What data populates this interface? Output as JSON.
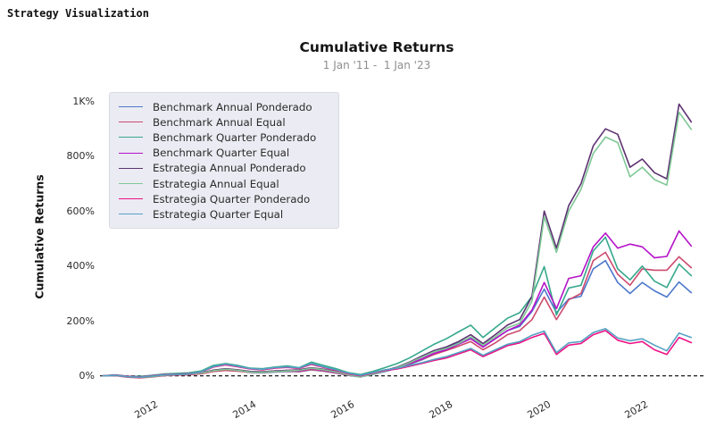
{
  "window": {
    "title": "Strategy Visualization"
  },
  "chart": {
    "title": "Cumulative Returns",
    "subtitle": "1 Jan '11 -  1 Jan '23",
    "y_axis_label": "Cumulative Returns"
  },
  "chart_data": {
    "type": "line",
    "title": "Cumulative Returns",
    "subtitle": "1 Jan '11 -  1 Jan '23",
    "xlabel": "",
    "ylabel": "Cumulative Returns",
    "grid": false,
    "legend_position": "upper-left",
    "zero_line": {
      "value": 0,
      "style": "dashed",
      "color": "#000000"
    },
    "x_ticks": [
      2012,
      2014,
      2016,
      2018,
      2020,
      2022
    ],
    "y_ticks": [
      "0%",
      "200%",
      "400%",
      "600%",
      "800%",
      "1K%"
    ],
    "y_tick_values": [
      0,
      200,
      400,
      600,
      800,
      1000
    ],
    "ylim": [
      -40,
      1060
    ],
    "xlim": [
      2011,
      2023
    ],
    "x": [
      2011.0,
      2011.25,
      2011.5,
      2011.75,
      2012.0,
      2012.25,
      2012.5,
      2012.75,
      2013.0,
      2013.25,
      2013.5,
      2013.75,
      2014.0,
      2014.25,
      2014.5,
      2014.75,
      2015.0,
      2015.25,
      2015.5,
      2015.75,
      2016.0,
      2016.25,
      2016.5,
      2016.75,
      2017.0,
      2017.25,
      2017.5,
      2017.75,
      2018.0,
      2018.25,
      2018.5,
      2018.75,
      2019.0,
      2019.25,
      2019.5,
      2019.75,
      2020.0,
      2020.25,
      2020.5,
      2020.75,
      2021.0,
      2021.25,
      2021.5,
      2021.75,
      2022.0,
      2022.25,
      2022.5,
      2022.75,
      2023.0
    ],
    "series": [
      {
        "name": "Benchmark Annual Ponderado",
        "color": "#4d79cc",
        "values": [
          0,
          2,
          -4,
          -6,
          -3,
          2,
          4,
          5,
          8,
          18,
          22,
          18,
          12,
          11,
          14,
          16,
          15,
          22,
          17,
          10,
          2,
          -4,
          5,
          16,
          28,
          42,
          58,
          78,
          100,
          120,
          140,
          105,
          135,
          165,
          180,
          235,
          316,
          230,
          280,
          290,
          390,
          420,
          340,
          300,
          340,
          310,
          287,
          342,
          303
        ]
      },
      {
        "name": "Benchmark Annual Equal",
        "color": "#cc4a6e",
        "values": [
          0,
          1,
          -5,
          -7,
          -4,
          1,
          3,
          4,
          8,
          16,
          20,
          17,
          13,
          12,
          15,
          17,
          16,
          23,
          18,
          11,
          3,
          -3,
          6,
          18,
          30,
          44,
          60,
          78,
          92,
          108,
          125,
          95,
          120,
          150,
          165,
          205,
          287,
          205,
          277,
          300,
          420,
          450,
          370,
          330,
          390,
          385,
          385,
          434,
          394
        ]
      },
      {
        "name": "Benchmark Quarter Ponderado",
        "color": "#35a88c",
        "values": [
          0,
          4,
          -1,
          -2,
          2,
          7,
          9,
          11,
          18,
          38,
          45,
          38,
          28,
          26,
          32,
          36,
          30,
          50,
          38,
          26,
          12,
          5,
          16,
          30,
          45,
          65,
          90,
          115,
          135,
          160,
          185,
          140,
          175,
          210,
          230,
          290,
          398,
          222,
          320,
          330,
          455,
          505,
          390,
          350,
          400,
          345,
          322,
          407,
          365
        ]
      },
      {
        "name": "Benchmark Quarter Equal",
        "color": "#b512c9",
        "values": [
          0,
          2,
          -3,
          -5,
          -2,
          3,
          5,
          7,
          10,
          20,
          25,
          21,
          16,
          14,
          18,
          20,
          18,
          27,
          21,
          13,
          5,
          -2,
          8,
          20,
          28,
          45,
          62,
          82,
          95,
          115,
          135,
          105,
          135,
          165,
          185,
          240,
          340,
          245,
          355,
          365,
          470,
          520,
          465,
          480,
          470,
          430,
          435,
          528,
          473
        ]
      },
      {
        "name": "Estrategia Annual Ponderado",
        "color": "#5d3272",
        "values": [
          0,
          3,
          -2,
          -4,
          -2,
          4,
          6,
          8,
          11,
          21,
          26,
          22,
          16,
          15,
          18,
          20,
          22,
          30,
          24,
          16,
          6,
          -2,
          8,
          20,
          32,
          50,
          72,
          92,
          105,
          125,
          150,
          118,
          150,
          185,
          205,
          290,
          600,
          465,
          620,
          700,
          838,
          900,
          880,
          760,
          790,
          740,
          718,
          990,
          925
        ]
      },
      {
        "name": "Estrategia Annual Equal",
        "color": "#7ec795",
        "values": [
          0,
          2,
          -3,
          -5,
          -3,
          3,
          5,
          7,
          10,
          19,
          24,
          20,
          14,
          13,
          16,
          18,
          20,
          28,
          22,
          14,
          4,
          -4,
          6,
          18,
          30,
          48,
          68,
          88,
          100,
          118,
          142,
          112,
          142,
          175,
          192,
          272,
          580,
          450,
          600,
          680,
          810,
          870,
          850,
          725,
          760,
          715,
          695,
          960,
          898
        ]
      },
      {
        "name": "Estrategia Quarter Ponderado",
        "color": "#ee1184",
        "values": [
          0,
          3,
          -2,
          -4,
          0,
          5,
          6,
          8,
          14,
          32,
          40,
          33,
          25,
          22,
          28,
          31,
          27,
          42,
          31,
          20,
          8,
          0,
          10,
          20,
          25,
          35,
          45,
          56,
          65,
          80,
          95,
          70,
          90,
          110,
          120,
          140,
          155,
          78,
          112,
          118,
          150,
          165,
          130,
          118,
          125,
          95,
          78,
          140,
          121
        ]
      },
      {
        "name": "Estrategia Quarter Equal",
        "color": "#55a1c4",
        "values": [
          0,
          2,
          -3,
          -5,
          -1,
          4,
          5,
          7,
          15,
          34,
          43,
          35,
          27,
          24,
          30,
          33,
          29,
          45,
          33,
          22,
          10,
          2,
          12,
          22,
          28,
          38,
          48,
          60,
          70,
          85,
          100,
          75,
          95,
          115,
          125,
          148,
          163,
          85,
          120,
          125,
          158,
          172,
          138,
          128,
          135,
          112,
          91,
          156,
          140
        ]
      }
    ]
  }
}
